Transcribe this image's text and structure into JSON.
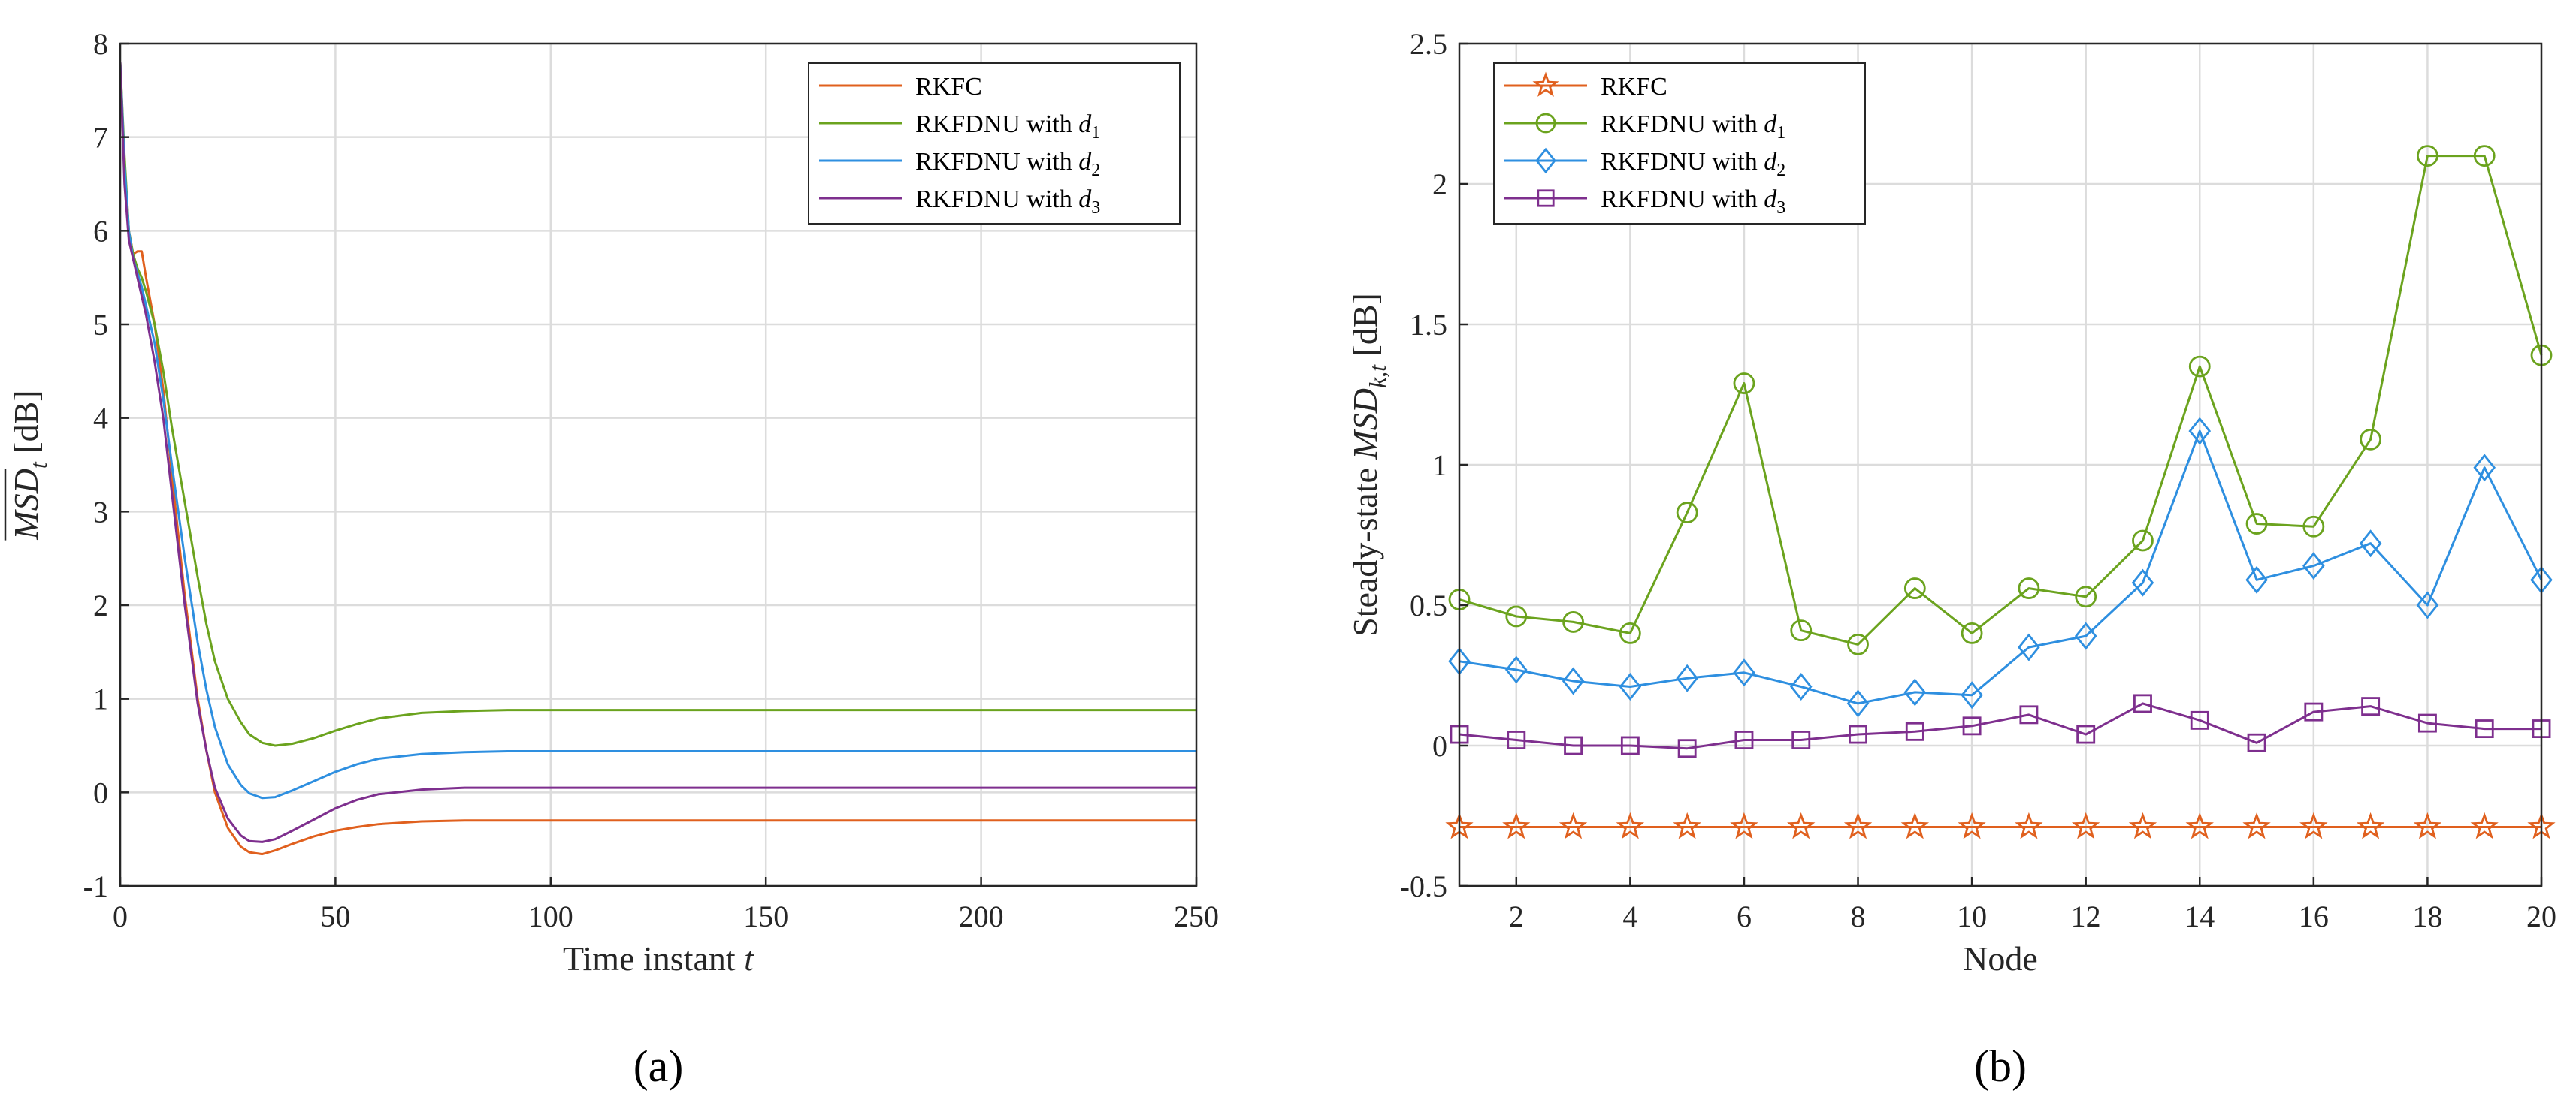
{
  "chart_data": [
    {
      "id": "a",
      "type": "line",
      "caption": "(a)",
      "xlabel_prefix": "Time instant ",
      "xlabel_var": "t",
      "ylabel_main": "MSD",
      "ylabel_sub": "t",
      "ylabel_unit": " [dB]",
      "xlim": [
        0,
        250
      ],
      "ylim": [
        -1,
        8
      ],
      "xticks": [
        0,
        50,
        100,
        150,
        200,
        250
      ],
      "yticks": [
        -1,
        0,
        1,
        2,
        3,
        4,
        5,
        6,
        7,
        8
      ],
      "grid": true,
      "legend_position": "top-right",
      "series": [
        {
          "name": "RKFC",
          "legend_sub": "",
          "color": "#E0601E",
          "x": [
            0,
            1,
            2,
            3,
            4,
            5,
            6,
            8,
            10,
            12,
            15,
            18,
            20,
            22,
            25,
            28,
            30,
            33,
            36,
            40,
            45,
            50,
            55,
            60,
            70,
            80,
            90,
            100,
            150,
            200,
            250
          ],
          "y": [
            7.8,
            6.7,
            6.0,
            5.75,
            5.78,
            5.78,
            5.5,
            5.0,
            4.3,
            3.4,
            2.1,
            1.0,
            0.45,
            0.0,
            -0.38,
            -0.58,
            -0.64,
            -0.66,
            -0.62,
            -0.55,
            -0.47,
            -0.41,
            -0.37,
            -0.34,
            -0.31,
            -0.3,
            -0.3,
            -0.3,
            -0.3,
            -0.3,
            -0.3
          ]
        },
        {
          "name": "RKFDNU with ",
          "legend_sub": "1",
          "color": "#6BA31E",
          "x": [
            0,
            1,
            2,
            3,
            4,
            5,
            6,
            8,
            10,
            12,
            15,
            18,
            20,
            22,
            25,
            28,
            30,
            33,
            36,
            40,
            45,
            50,
            55,
            60,
            70,
            80,
            90,
            100,
            150,
            200,
            250
          ],
          "y": [
            7.8,
            6.8,
            6.0,
            5.75,
            5.6,
            5.5,
            5.35,
            5.0,
            4.5,
            3.9,
            3.1,
            2.3,
            1.8,
            1.4,
            1.0,
            0.75,
            0.62,
            0.53,
            0.5,
            0.52,
            0.58,
            0.66,
            0.73,
            0.79,
            0.85,
            0.87,
            0.88,
            0.88,
            0.88,
            0.88,
            0.88
          ]
        },
        {
          "name": "RKFDNU with ",
          "legend_sub": "2",
          "color": "#2E8FE0",
          "x": [
            0,
            1,
            2,
            3,
            4,
            5,
            6,
            8,
            10,
            12,
            15,
            18,
            20,
            22,
            25,
            28,
            30,
            33,
            36,
            40,
            45,
            50,
            55,
            60,
            70,
            80,
            90,
            100,
            150,
            200,
            250
          ],
          "y": [
            7.8,
            6.7,
            6.0,
            5.7,
            5.55,
            5.4,
            5.2,
            4.8,
            4.2,
            3.5,
            2.5,
            1.6,
            1.1,
            0.7,
            0.3,
            0.08,
            -0.01,
            -0.06,
            -0.05,
            0.02,
            0.12,
            0.22,
            0.3,
            0.36,
            0.41,
            0.43,
            0.44,
            0.44,
            0.44,
            0.44,
            0.44
          ]
        },
        {
          "name": "RKFDNU with ",
          "legend_sub": "3",
          "color": "#7E2F8E",
          "x": [
            0,
            1,
            2,
            3,
            4,
            5,
            6,
            8,
            10,
            12,
            15,
            18,
            20,
            22,
            25,
            28,
            30,
            33,
            36,
            40,
            45,
            50,
            55,
            60,
            70,
            80,
            90,
            100,
            150,
            200,
            250
          ],
          "y": [
            7.8,
            6.5,
            5.9,
            5.7,
            5.5,
            5.3,
            5.1,
            4.6,
            4.0,
            3.2,
            2.0,
            0.95,
            0.45,
            0.05,
            -0.28,
            -0.46,
            -0.52,
            -0.53,
            -0.5,
            -0.41,
            -0.29,
            -0.17,
            -0.08,
            -0.02,
            0.03,
            0.05,
            0.05,
            0.05,
            0.05,
            0.05,
            0.05
          ]
        }
      ]
    },
    {
      "id": "b",
      "type": "line",
      "caption": "(b)",
      "xlabel": "Node",
      "ylabel_prefix": "Steady-state ",
      "ylabel_main": "MSD",
      "ylabel_sub": "k,t",
      "ylabel_unit": " [dB]",
      "xlim": [
        1,
        20
      ],
      "ylim": [
        -0.5,
        2.5
      ],
      "xticks": [
        2,
        4,
        6,
        8,
        10,
        12,
        14,
        16,
        18,
        20
      ],
      "yticks": [
        -0.5,
        0,
        0.5,
        1,
        1.5,
        2,
        2.5
      ],
      "grid": true,
      "legend_position": "top-left",
      "x": [
        1,
        2,
        3,
        4,
        5,
        6,
        7,
        8,
        9,
        10,
        11,
        12,
        13,
        14,
        15,
        16,
        17,
        18,
        19,
        20
      ],
      "series": [
        {
          "name": "RKFC",
          "legend_sub": "",
          "color": "#E0601E",
          "marker": "star",
          "values": [
            -0.29,
            -0.29,
            -0.29,
            -0.29,
            -0.29,
            -0.29,
            -0.29,
            -0.29,
            -0.29,
            -0.29,
            -0.29,
            -0.29,
            -0.29,
            -0.29,
            -0.29,
            -0.29,
            -0.29,
            -0.29,
            -0.29,
            -0.29
          ]
        },
        {
          "name": "RKFDNU with ",
          "legend_sub": "1",
          "color": "#6BA31E",
          "marker": "circle",
          "values": [
            0.52,
            0.46,
            0.44,
            0.4,
            0.83,
            1.29,
            0.41,
            0.36,
            0.56,
            0.4,
            0.56,
            0.53,
            0.73,
            1.35,
            0.79,
            0.78,
            1.09,
            2.1,
            2.1,
            1.39
          ]
        },
        {
          "name": "RKFDNU with ",
          "legend_sub": "2",
          "color": "#2E8FE0",
          "marker": "diamond",
          "values": [
            0.3,
            0.27,
            0.23,
            0.21,
            0.24,
            0.26,
            0.21,
            0.15,
            0.19,
            0.18,
            0.35,
            0.39,
            0.58,
            1.12,
            0.59,
            0.64,
            0.72,
            0.5,
            0.99,
            0.59
          ]
        },
        {
          "name": "RKFDNU with ",
          "legend_sub": "3",
          "color": "#7E2F8E",
          "marker": "square",
          "values": [
            0.04,
            0.02,
            0.0,
            0.0,
            -0.01,
            0.02,
            0.02,
            0.04,
            0.05,
            0.07,
            0.11,
            0.04,
            0.15,
            0.09,
            0.01,
            0.12,
            0.14,
            0.08,
            0.06,
            0.06
          ]
        }
      ]
    }
  ]
}
